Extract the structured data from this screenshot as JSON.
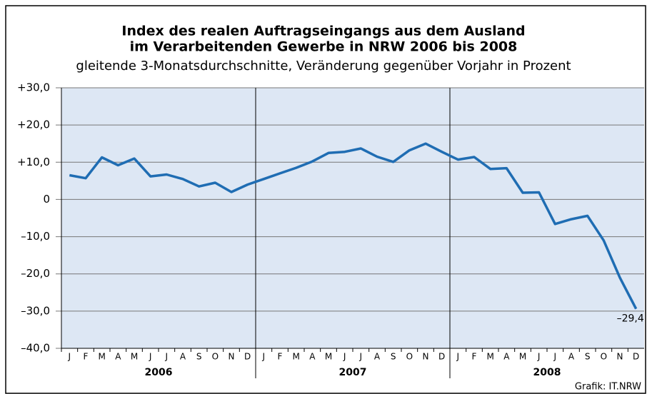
{
  "chart_data": {
    "type": "line",
    "title": [
      "Index des realen Auftragseingangs aus dem Ausland",
      "im Verarbeitenden Gewerbe in NRW 2006 bis 2008"
    ],
    "subtitle": "gleitende 3-Monatsdurchschnitte, Veränderung gegenüber Vorjahr in Prozent",
    "source": "Grafik: IT.NRW",
    "categories": [
      "J",
      "F",
      "M",
      "A",
      "M",
      "J",
      "J",
      "A",
      "S",
      "O",
      "N",
      "D",
      "J",
      "F",
      "M",
      "A",
      "M",
      "J",
      "J",
      "A",
      "S",
      "O",
      "N",
      "D",
      "J",
      "F",
      "M",
      "A",
      "M",
      "J",
      "J",
      "A",
      "S",
      "O",
      "N",
      "D"
    ],
    "years": [
      "2006",
      "2007",
      "2008"
    ],
    "series": [
      {
        "color": "#1f6db3",
        "values": [
          6.5,
          5.7,
          11.3,
          9.2,
          11.0,
          6.2,
          6.7,
          5.5,
          3.5,
          4.5,
          2.0,
          4.0,
          5.5,
          7.0,
          8.5,
          10.2,
          12.5,
          12.8,
          13.7,
          11.5,
          10.1,
          13.2,
          15.0,
          12.8,
          10.7,
          11.4,
          8.2,
          8.4,
          1.8,
          1.9,
          -6.6,
          -5.3,
          -4.4,
          -11.0,
          -21.0,
          -29.4
        ],
        "value_labels": {
          "35": "–29,4"
        }
      }
    ],
    "ylim": [
      -40,
      30
    ],
    "yticks": [
      {
        "value": -40,
        "label": "–40,0"
      },
      {
        "value": -30,
        "label": "–30,0"
      },
      {
        "value": -20,
        "label": "–20,0"
      },
      {
        "value": -10,
        "label": "–10,0"
      },
      0,
      {
        "value": 10,
        "label": "+10,0"
      },
      {
        "value": 20,
        "label": "+20,0"
      },
      {
        "value": 30,
        "label": "+30,0"
      }
    ],
    "grid": true,
    "background": "#dde7f4"
  }
}
